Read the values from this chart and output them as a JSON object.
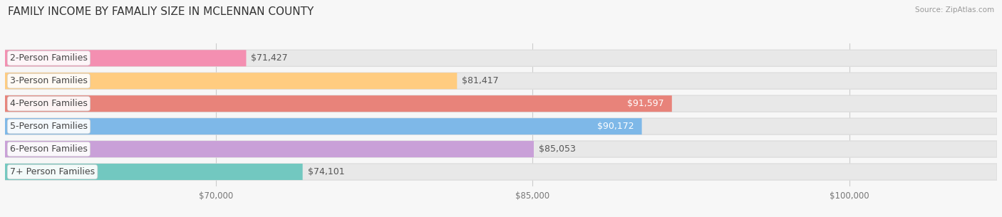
{
  "title": "FAMILY INCOME BY FAMALIY SIZE IN MCLENNAN COUNTY",
  "source": "Source: ZipAtlas.com",
  "categories": [
    "2-Person Families",
    "3-Person Families",
    "4-Person Families",
    "5-Person Families",
    "6-Person Families",
    "7+ Person Families"
  ],
  "values": [
    71427,
    81417,
    91597,
    90172,
    85053,
    74101
  ],
  "bar_colors": [
    "#f48fb1",
    "#ffcc80",
    "#e8837a",
    "#7eb8e8",
    "#c9a0d8",
    "#72c8c0"
  ],
  "value_inside": [
    false,
    false,
    true,
    true,
    false,
    false
  ],
  "xmin": 60000,
  "xmax": 107000,
  "xticks": [
    70000,
    85000,
    100000
  ],
  "xtick_labels": [
    "$70,000",
    "$85,000",
    "$100,000"
  ],
  "background_color": "#f7f7f7",
  "bar_bg_color": "#e8e8e8",
  "title_fontsize": 11,
  "label_fontsize": 9,
  "value_fontsize": 9
}
